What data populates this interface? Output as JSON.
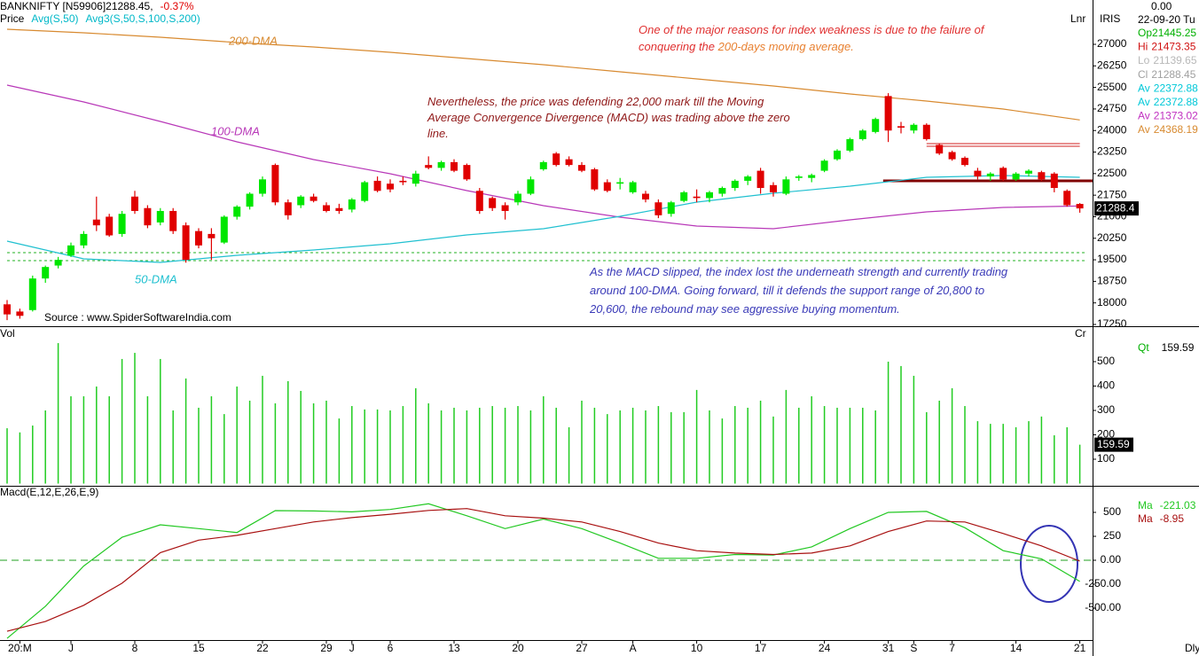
{
  "header": {
    "title": "BANKNIFTY [N59906]21288.45,",
    "change": "-0.37%",
    "studies": [
      {
        "text": "Price",
        "color": "#000000"
      },
      {
        "text": "Avg(S,50)",
        "color": "#00b8c8"
      },
      {
        "text": "Avg3(S,50,S,100,S,200)",
        "color": "#00b8c8"
      }
    ],
    "scale": "Lnr"
  },
  "info": {
    "readout": "0.00",
    "exchange": "IRIS",
    "date": "22-09-20 Tu",
    "rows": [
      {
        "label": "Op",
        "color": "#00b000"
      },
      {
        "label": "Hi",
        "color": "#d01010"
      },
      {
        "label": "Lo",
        "color": "#b8b8b8"
      },
      {
        "label": "Cl",
        "color": "#a0a0a0"
      },
      {
        "label": "Av",
        "color": "#00c8d8"
      },
      {
        "label": "Av",
        "color": "#00c8d8"
      },
      {
        "label": "Av",
        "color": "#c030c0"
      },
      {
        "label": "Av",
        "color": "#d88a30"
      }
    ],
    "period": "Dly"
  },
  "source": "Source : www.SpiderSoftwareIndia.com",
  "annotations": [
    {
      "color": "#e03030",
      "lines": [
        [
          {
            "text": "One of the major reasons for index weakness is due to the failure of"
          }
        ],
        [
          {
            "text": "conquering the "
          },
          {
            "text": "200-days moving average.",
            "color": "#e88030"
          }
        ]
      ]
    },
    {
      "color": "#901818",
      "lines": [
        [
          {
            "text": "Nevertheless, the price was defending 22,000 mark till the Moving"
          }
        ],
        [
          {
            "text": "Average Convergence Divergence (MACD) was trading above the zero"
          }
        ],
        [
          {
            "text": "line."
          }
        ]
      ]
    },
    {
      "color": "#3a3ab8",
      "lines": [
        [
          {
            "text": "As the MACD slipped, the index lost the underneath strength and currently trading"
          }
        ],
        [
          {
            "text": "around 100-DMA. Going forward, till it defends the support range of 20,800 to"
          }
        ],
        [
          {
            "text": "20,600, the rebound may see aggressive buying momentum."
          }
        ]
      ]
    }
  ],
  "chart_data": [
    {
      "type": "candlestick",
      "up_color": "#00e600",
      "down_color": "#e00000",
      "categories": [
        null,
        "20:M",
        null,
        null,
        null,
        "J",
        null,
        null,
        null,
        null,
        "8",
        null,
        null,
        null,
        null,
        "15",
        null,
        null,
        null,
        null,
        "22",
        null,
        null,
        null,
        null,
        "29",
        null,
        "J",
        null,
        null,
        "6",
        null,
        null,
        null,
        null,
        "13",
        null,
        null,
        null,
        null,
        "20",
        null,
        null,
        null,
        null,
        "27",
        null,
        null,
        null,
        "A",
        null,
        null,
        null,
        null,
        "10",
        null,
        null,
        null,
        null,
        "17",
        null,
        null,
        null,
        null,
        "24",
        null,
        null,
        null,
        null,
        "31",
        null,
        "S",
        null,
        null,
        "7",
        null,
        null,
        null,
        null,
        "14",
        null,
        null,
        null,
        null,
        "21"
      ],
      "open": [
        17950,
        17700,
        17750,
        18850,
        19300,
        19650,
        20000,
        20900,
        21000,
        20400,
        21700,
        21300,
        20800,
        21200,
        20700,
        20500,
        20400,
        20100,
        21000,
        21350,
        21800,
        22800,
        21500,
        21400,
        21700,
        21400,
        21300,
        21250,
        21550,
        22250,
        22150,
        22250,
        22150,
        22800,
        22700,
        22900,
        22800,
        21900,
        21650,
        21400,
        21500,
        21800,
        22650,
        23200,
        23000,
        22800,
        22650,
        22200,
        22150,
        21850,
        21800,
        21500,
        21100,
        21550,
        21700,
        21650,
        21800,
        22000,
        22250,
        22600,
        22100,
        21800,
        22350,
        22350,
        22600,
        23000,
        23300,
        23700,
        23950,
        25200,
        24150,
        24000,
        24200,
        23500,
        23250,
        23050,
        22600,
        22400,
        22700,
        22300,
        22500,
        22550,
        22500,
        21900,
        21445.25
      ],
      "high": [
        18100,
        17800,
        18950,
        19300,
        19600,
        20100,
        20500,
        21700,
        21100,
        21200,
        21900,
        21400,
        21300,
        21300,
        20800,
        20600,
        20600,
        21050,
        21400,
        21850,
        22400,
        22850,
        21600,
        21750,
        21800,
        21500,
        21450,
        21650,
        22250,
        22400,
        22300,
        22400,
        22600,
        23100,
        22950,
        23000,
        22850,
        22000,
        21700,
        21500,
        21900,
        22400,
        22950,
        23250,
        23100,
        22900,
        22700,
        22300,
        22350,
        22250,
        21900,
        21600,
        21550,
        21900,
        21950,
        21900,
        22050,
        22300,
        22450,
        22700,
        22200,
        22400,
        22450,
        22500,
        23000,
        23350,
        23750,
        24050,
        24450,
        25300,
        24300,
        24250,
        24250,
        23550,
        23300,
        23100,
        22700,
        22550,
        22750,
        22550,
        22650,
        22600,
        22550,
        21950,
        21473.35
      ],
      "low": [
        17400,
        17450,
        17700,
        18700,
        19200,
        19600,
        19900,
        20500,
        20300,
        20300,
        21100,
        20600,
        20700,
        20400,
        19400,
        19900,
        19500,
        20050,
        20900,
        21250,
        21700,
        21400,
        20900,
        21300,
        21500,
        21150,
        21100,
        21150,
        21500,
        21850,
        21850,
        22100,
        22050,
        22650,
        22600,
        22550,
        22250,
        21100,
        21200,
        20900,
        21400,
        21750,
        22600,
        22750,
        22750,
        22550,
        21900,
        21850,
        21950,
        21800,
        21500,
        20950,
        21000,
        21500,
        21500,
        21500,
        21700,
        21900,
        22100,
        21800,
        21700,
        21750,
        22250,
        22200,
        22550,
        22950,
        23250,
        23650,
        23900,
        23600,
        23900,
        23900,
        23650,
        23150,
        22950,
        22750,
        22300,
        22250,
        22250,
        22250,
        22400,
        22250,
        21850,
        21350,
        21139.65
      ],
      "close": [
        17600,
        17550,
        18850,
        19250,
        19500,
        20000,
        20400,
        20700,
        20350,
        21100,
        21200,
        20700,
        21200,
        20500,
        19500,
        20000,
        20250,
        21000,
        21350,
        21800,
        22300,
        21500,
        21050,
        21700,
        21550,
        21200,
        21200,
        21600,
        22200,
        21900,
        21950,
        22200,
        22500,
        22700,
        22900,
        22600,
        22300,
        21200,
        21300,
        21200,
        21800,
        22300,
        22900,
        22800,
        22800,
        22600,
        21950,
        21900,
        22200,
        22200,
        21600,
        21050,
        21500,
        21850,
        21650,
        21850,
        22000,
        22250,
        22400,
        22000,
        21850,
        22300,
        22400,
        22450,
        22950,
        23300,
        23700,
        24000,
        24400,
        24000,
        24100,
        24200,
        23700,
        23200,
        23000,
        22800,
        22400,
        22500,
        22300,
        22500,
        22600,
        22300,
        22000,
        21400,
        21288.45
      ],
      "price_marker": "21288.4",
      "series": [
        {
          "name": "200-DMA",
          "color": "#d88a30",
          "x": [
            0,
            6,
            12,
            18,
            24,
            30,
            36,
            42,
            48,
            54,
            60,
            66,
            72,
            78,
            84
          ],
          "values": [
            27525,
            27401,
            27247,
            27062,
            26908,
            26723,
            26507,
            26291,
            26044,
            25797,
            25550,
            25272,
            25025,
            24748,
            24368.19
          ]
        },
        {
          "name": "100-DMA",
          "color": "#b838b8",
          "x": [
            0,
            6,
            12,
            18,
            24,
            30,
            36,
            42,
            48,
            54,
            60,
            66,
            72,
            78,
            84
          ],
          "values": [
            25581,
            24995,
            24316,
            23606,
            22989,
            22495,
            21909,
            21384,
            20983,
            20675,
            20582,
            20891,
            21168,
            21323,
            21373.02
          ]
        },
        {
          "name": "50-DMA",
          "color": "#20c0d0",
          "x": [
            0,
            6,
            12,
            18,
            24,
            30,
            36,
            42,
            48,
            54,
            60,
            66,
            72,
            78,
            84
          ],
          "values": [
            20150,
            19533,
            19410,
            19657,
            19842,
            20058,
            20366,
            20582,
            21014,
            21508,
            21816,
            22063,
            22372,
            22434,
            22372.88
          ]
        }
      ],
      "levels": [
        {
          "value": 23544,
          "from": 72,
          "to": 84,
          "color": "#d02020",
          "dash": false
        },
        {
          "value": 23452,
          "from": 72,
          "to": 84,
          "color": "#d02020",
          "dash": false
        },
        {
          "value": 22248,
          "from": 68.6,
          "to": 85,
          "color": "#800000",
          "dash": false,
          "width": 3
        },
        {
          "value": 19749,
          "from": 0,
          "to": 84.5,
          "color": "#20b020",
          "dash": true
        },
        {
          "value": 19471,
          "from": 0,
          "to": 84.5,
          "color": "#20b020",
          "dash": true
        }
      ],
      "ylim": [
        17188,
        28543
      ],
      "yticks": [
        27000,
        26250,
        25500,
        24750,
        24000,
        23250,
        22500,
        21750,
        21000,
        20250,
        19500,
        18750,
        18000,
        17250
      ]
    },
    {
      "type": "bar",
      "title": "Vol",
      "unit": "Cr",
      "color": "#22cc22",
      "readout_label": "Qt",
      "readout_color": "#00b000",
      "values": [
        227,
        210,
        238,
        300,
        576,
        358,
        358,
        398,
        358,
        511,
        536,
        358,
        511,
        300,
        431,
        311,
        358,
        285,
        398,
        340,
        442,
        329,
        420,
        380,
        329,
        340,
        267,
        318,
        304,
        304,
        300,
        318,
        391,
        329,
        300,
        311,
        300,
        311,
        318,
        311,
        318,
        300,
        358,
        311,
        231,
        340,
        311,
        285,
        300,
        311,
        300,
        318,
        293,
        293,
        384,
        300,
        267,
        318,
        311,
        340,
        275,
        384,
        311,
        358,
        318,
        311,
        311,
        311,
        300,
        500,
        482,
        442,
        293,
        340,
        391,
        318,
        256,
        245,
        245,
        231,
        256,
        275,
        198,
        231,
        159.59
      ],
      "ylim": [
        -9,
        638
      ],
      "yticks": [
        100,
        200,
        300,
        400,
        500
      ]
    },
    {
      "type": "line",
      "title": "Macd(E,12,E,26,E,9)",
      "x": [
        0,
        3,
        6,
        9,
        12,
        15,
        18,
        21,
        24,
        27,
        30,
        33,
        36,
        39,
        42,
        45,
        48,
        51,
        54,
        57,
        60,
        63,
        66,
        69,
        72,
        75,
        78,
        81,
        84
      ],
      "series": [
        {
          "readout_label": "Ma",
          "color": "#22c822",
          "values": [
            -815,
            -480,
            -60,
            240,
            370,
            330,
            290,
            518,
            515,
            505,
            530,
            590,
            465,
            330,
            430,
            330,
            180,
            20,
            20,
            60,
            55,
            140,
            330,
            500,
            510,
            340,
            100,
            15,
            -221.03
          ]
        },
        {
          "readout_label": "Ma",
          "color": "#a81010",
          "values": [
            -741,
            -640,
            -470,
            -240,
            80,
            210,
            260,
            330,
            400,
            445,
            480,
            520,
            540,
            465,
            440,
            400,
            300,
            180,
            100,
            75,
            60,
            75,
            150,
            300,
            410,
            400,
            280,
            150,
            -8.95
          ]
        }
      ],
      "zero_line_color": "#20a020",
      "ylim": [
        -833,
        759
      ],
      "yticks": [
        500,
        250,
        {
          "value": 0,
          "label": "0.00"
        },
        {
          "value": -250,
          "label": "-250.00"
        },
        {
          "value": -500,
          "label": "-500.00"
        }
      ]
    }
  ]
}
